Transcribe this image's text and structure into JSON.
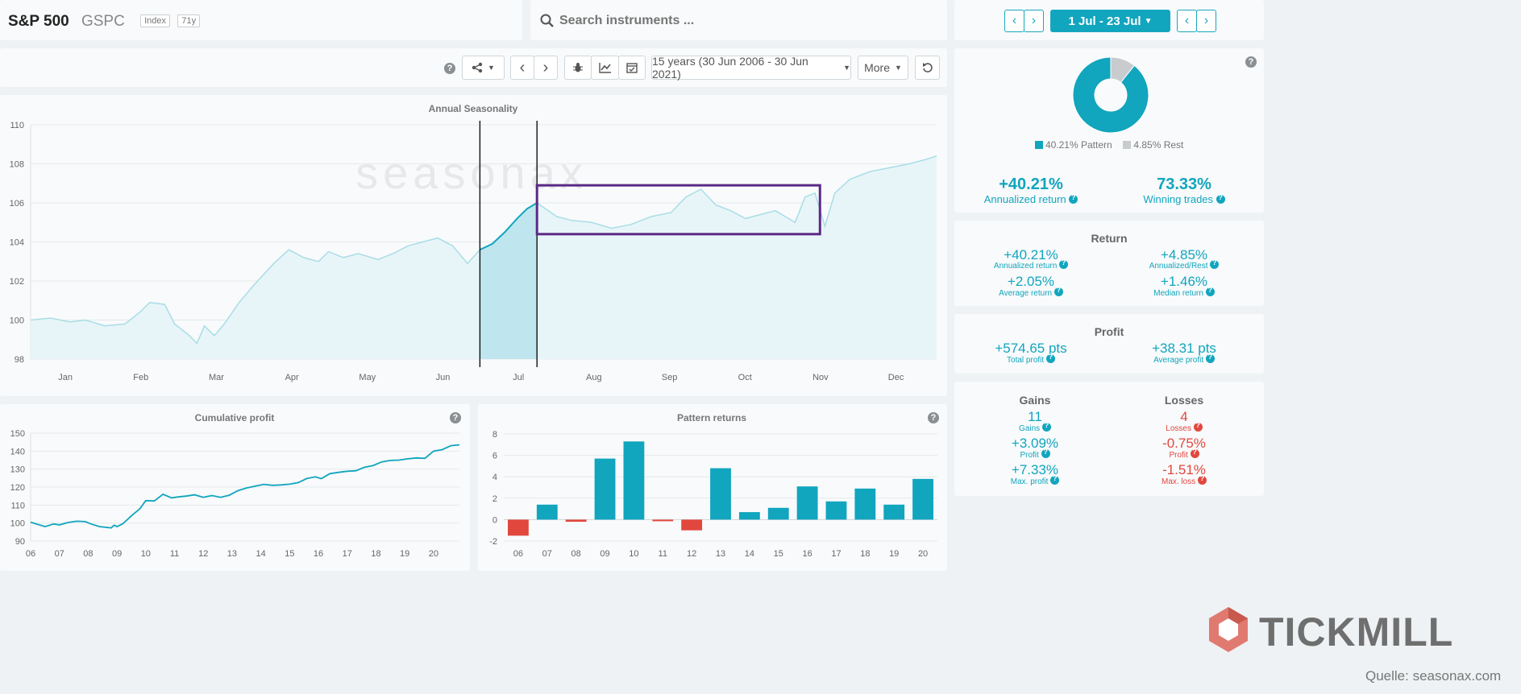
{
  "instrument": {
    "name": "S&P 500",
    "ticker": "GSPC",
    "tag1": "Index",
    "tag2": "71y"
  },
  "search": {
    "placeholder": "Search instruments ..."
  },
  "period": {
    "label": "1 Jul - 23 Jul",
    "range_label": "15 years (30 Jun 2006 - 30 Jun 2021)",
    "more_label": "More"
  },
  "icons": [
    "help-icon",
    "share-icon",
    "chevron-left-icon",
    "chevron-right-icon",
    "bug-icon",
    "line-chart-icon",
    "calendar-icon",
    "reset-icon",
    "search-icon"
  ],
  "colors": {
    "accent": "#11a5be",
    "positive": "#11a5be",
    "negative": "#e2473d",
    "highlight_box": "#5b2a86",
    "rest": "#c8ccce"
  },
  "summary": {
    "legend_pattern": "40.21% Pattern",
    "legend_rest": "4.85% Rest",
    "annualized_return": "+40.21%",
    "annualized_return_label": "Annualized return",
    "winning_trades": "73.33%",
    "winning_trades_label": "Winning trades"
  },
  "return": {
    "title": "Return",
    "items": [
      {
        "value": "+40.21%",
        "label": "Annualized return"
      },
      {
        "value": "+4.85%",
        "label": "Annualized/Rest"
      },
      {
        "value": "+2.05%",
        "label": "Average return"
      },
      {
        "value": "+1.46%",
        "label": "Median return"
      }
    ]
  },
  "profit": {
    "title": "Profit",
    "items": [
      {
        "value": "+574.65 pts",
        "label": "Total profit"
      },
      {
        "value": "+38.31 pts",
        "label": "Average profit"
      }
    ]
  },
  "gains": {
    "title": "Gains",
    "count": "11",
    "count_label": "Gains",
    "profit": "+3.09%",
    "profit_label": "Profit",
    "max": "+7.33%",
    "max_label": "Max. profit"
  },
  "losses": {
    "title": "Losses",
    "count": "4",
    "count_label": "Losses",
    "profit": "-0.75%",
    "profit_label": "Profit",
    "max": "-1.51%",
    "max_label": "Max. loss"
  },
  "branding": {
    "watermark": "seasonax",
    "logo": "TICKMILL",
    "source": "Quelle: seasonax.com"
  },
  "chart_data": [
    {
      "type": "line",
      "title": "Annual Seasonality",
      "x_ticks": [
        "Jan",
        "Feb",
        "Mar",
        "Apr",
        "May",
        "Jun",
        "Jul",
        "Aug",
        "Sep",
        "Oct",
        "Nov",
        "Dec"
      ],
      "ylim": [
        98,
        110
      ],
      "y_ticks": [
        98,
        100,
        102,
        104,
        106,
        108,
        110
      ],
      "x_range_days": [
        0,
        365
      ],
      "pattern_window_days": [
        181,
        204
      ],
      "highlight_box": {
        "days": [
          204,
          318
        ],
        "values": [
          104.4,
          106.9
        ]
      },
      "series": [
        {
          "points": [
            [
              0,
              100.0
            ],
            [
              8,
              100.1
            ],
            [
              16,
              99.9
            ],
            [
              22,
              100.0
            ],
            [
              30,
              99.7
            ],
            [
              38,
              99.8
            ],
            [
              44,
              100.4
            ],
            [
              48,
              100.9
            ],
            [
              54,
              100.8
            ],
            [
              58,
              99.8
            ],
            [
              64,
              99.2
            ],
            [
              67,
              98.8
            ],
            [
              70,
              99.7
            ],
            [
              74,
              99.2
            ],
            [
              78,
              99.8
            ],
            [
              84,
              100.9
            ],
            [
              90,
              101.8
            ],
            [
              98,
              102.9
            ],
            [
              104,
              103.6
            ],
            [
              110,
              103.2
            ],
            [
              116,
              103.0
            ],
            [
              120,
              103.5
            ],
            [
              126,
              103.2
            ],
            [
              132,
              103.4
            ],
            [
              140,
              103.1
            ],
            [
              146,
              103.4
            ],
            [
              152,
              103.8
            ],
            [
              158,
              104.0
            ],
            [
              164,
              104.2
            ],
            [
              170,
              103.8
            ],
            [
              176,
              102.9
            ],
            [
              181,
              103.6
            ],
            [
              186,
              103.9
            ],
            [
              191,
              104.5
            ],
            [
              196,
              105.2
            ],
            [
              200,
              105.7
            ],
            [
              204,
              106.0
            ],
            [
              212,
              105.3
            ],
            [
              218,
              105.1
            ],
            [
              226,
              105.0
            ],
            [
              234,
              104.7
            ],
            [
              242,
              104.9
            ],
            [
              250,
              105.3
            ],
            [
              258,
              105.5
            ],
            [
              264,
              106.3
            ],
            [
              270,
              106.7
            ],
            [
              276,
              105.9
            ],
            [
              282,
              105.6
            ],
            [
              288,
              105.2
            ],
            [
              294,
              105.4
            ],
            [
              300,
              105.6
            ],
            [
              308,
              105.0
            ],
            [
              312,
              106.3
            ],
            [
              316,
              106.5
            ],
            [
              320,
              104.8
            ],
            [
              324,
              106.5
            ],
            [
              330,
              107.2
            ],
            [
              338,
              107.6
            ],
            [
              346,
              107.8
            ],
            [
              354,
              108.0
            ],
            [
              360,
              108.2
            ],
            [
              365,
              108.4
            ]
          ]
        }
      ]
    },
    {
      "type": "line",
      "title": "Cumulative profit",
      "categories": [
        "06",
        "07",
        "08",
        "09",
        "10",
        "11",
        "12",
        "13",
        "14",
        "15",
        "16",
        "17",
        "18",
        "19",
        "20"
      ],
      "ylim": [
        90,
        150
      ],
      "y_ticks": [
        90,
        100,
        110,
        120,
        130,
        140,
        150
      ],
      "series": [
        {
          "x": [
            2006.0,
            2006.5,
            2006.8,
            2007.0,
            2007.3,
            2007.6,
            2007.9,
            2008.1,
            2008.4,
            2008.8,
            2008.9,
            2009.0,
            2009.2,
            2009.5,
            2009.8,
            2010.0,
            2010.3,
            2010.6,
            2010.9,
            2011.1,
            2011.4,
            2011.7,
            2012.0,
            2012.3,
            2012.6,
            2012.9,
            2013.2,
            2013.5,
            2013.8,
            2014.1,
            2014.4,
            2014.7,
            2015.0,
            2015.3,
            2015.6,
            2015.9,
            2016.1,
            2016.4,
            2016.7,
            2017.0,
            2017.3,
            2017.6,
            2017.9,
            2018.2,
            2018.5,
            2018.8,
            2019.1,
            2019.4,
            2019.7,
            2020.0,
            2020.3,
            2020.6,
            2020.9
          ],
          "values": [
            100.5,
            98,
            99.5,
            99,
            100.3,
            101,
            100.8,
            99.5,
            98,
            97.3,
            98.8,
            98,
            99.6,
            104,
            108,
            112.5,
            112.3,
            116,
            114,
            114.5,
            115,
            115.7,
            114.3,
            115.3,
            114.3,
            115.5,
            118,
            119.5,
            120.5,
            121.5,
            121,
            121.2,
            121.6,
            122.5,
            124.8,
            125.7,
            124.7,
            127.5,
            128.2,
            128.8,
            129.1,
            131,
            132,
            134,
            134.8,
            135,
            135.7,
            136.2,
            136,
            140,
            140.8,
            143,
            143.5
          ]
        }
      ]
    },
    {
      "type": "bar",
      "title": "Pattern returns",
      "categories": [
        "06",
        "07",
        "08",
        "09",
        "10",
        "11",
        "12",
        "13",
        "14",
        "15",
        "16",
        "17",
        "18",
        "19",
        "20"
      ],
      "values": [
        -1.5,
        1.4,
        -0.2,
        5.7,
        7.3,
        -0.1,
        -1.0,
        4.8,
        0.7,
        1.1,
        3.1,
        1.7,
        2.9,
        1.4,
        3.8
      ],
      "ylim": [
        -2,
        8
      ],
      "y_ticks": [
        -2,
        0,
        2,
        4,
        6,
        8
      ]
    },
    {
      "type": "pie",
      "slices": [
        {
          "name": "40.21% Pattern",
          "value": 40.21
        },
        {
          "name": "4.85% Rest",
          "value": 4.85
        }
      ]
    }
  ]
}
